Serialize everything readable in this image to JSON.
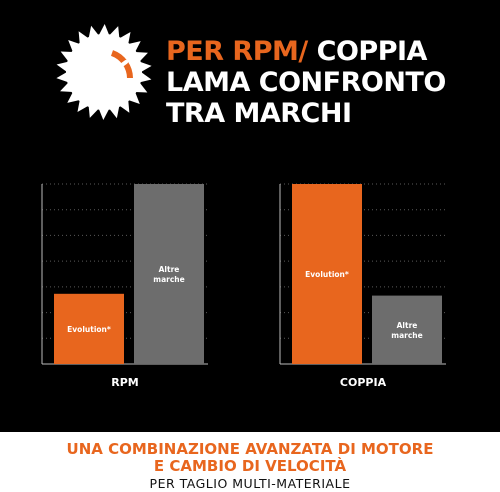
{
  "header": {
    "title_accent": "PER RPM/",
    "title_line1_rest": " COPPIA",
    "title_line2": "LAMA CONFRONTO",
    "title_line3": "TRA MARCHI",
    "icon": "saw-blade-speedometer-icon"
  },
  "colors": {
    "accent": "#e8661e",
    "grey_bar": "#6d6d6d",
    "background": "#000000",
    "grid": "#5a5a5a"
  },
  "chart_data": [
    {
      "type": "bar",
      "xlabel": "RPM",
      "ylim": [
        0,
        100
      ],
      "grid": true,
      "series": [
        {
          "name": "Evolution*",
          "values": [
            39
          ]
        },
        {
          "name": "Altre marche",
          "values": [
            100
          ]
        }
      ]
    },
    {
      "type": "bar",
      "xlabel": "COPPIA",
      "ylim": [
        0,
        100
      ],
      "grid": true,
      "series": [
        {
          "name": "Evolution*",
          "values": [
            100
          ]
        },
        {
          "name": "Altre marche",
          "values": [
            38
          ]
        }
      ]
    }
  ],
  "footer": {
    "line1": "UNA COMBINAZIONE AVANZATA DI MOTORE",
    "line2": "E CAMBIO DI VELOCITÀ",
    "subline": "PER TAGLIO MULTI-MATERIALE"
  }
}
